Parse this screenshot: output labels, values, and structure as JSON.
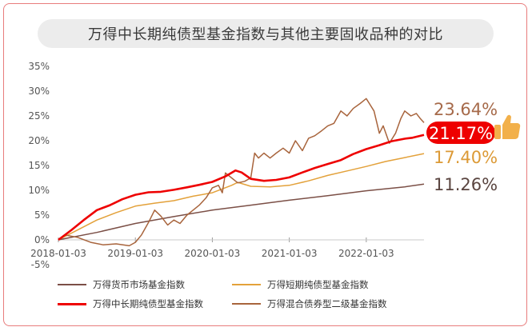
{
  "colors": {
    "frame": "#e87c7c",
    "money_market": "#7b4f46",
    "short_bond": "#e3a13a",
    "mid_long_bond": "#ee0000",
    "mixed_bond_2": "#a8643c",
    "label_brown": "#a66a4a",
    "label_gold": "#dc9a36",
    "label_dark": "#5a4540",
    "thumb": "#f2b04a"
  },
  "chart_data": {
    "type": "line",
    "title": "万得中长期纯债型基金指数与其他主要固收品种的对比",
    "xlabel": "",
    "ylabel": "",
    "x_tick_labels": [
      "2018-01-03",
      "2019-01-03",
      "2020-01-03",
      "2021-01-03",
      "2022-01-03"
    ],
    "x_tick_years": [
      2018.0,
      2019.0,
      2020.0,
      2021.0,
      2022.0
    ],
    "xlim": [
      2018.0,
      2022.75
    ],
    "y_tick_labels": [
      "35%",
      "30%",
      "25%",
      "20%",
      "15%",
      "10%",
      "5%",
      "0%",
      "-5%"
    ],
    "ylim": [
      -5,
      35
    ],
    "grid": false,
    "legend_position": "bottom",
    "series": [
      {
        "name": "万得货币市场基金指数",
        "color_key": "money_market",
        "points": [
          [
            2018.0,
            0
          ],
          [
            2018.5,
            1.5
          ],
          [
            2019.0,
            3.3
          ],
          [
            2019.5,
            4.7
          ],
          [
            2020.0,
            6.0
          ],
          [
            2020.5,
            7.0
          ],
          [
            2021.0,
            8.0
          ],
          [
            2021.5,
            8.9
          ],
          [
            2022.0,
            9.9
          ],
          [
            2022.5,
            10.7
          ],
          [
            2022.75,
            11.26
          ]
        ],
        "end_label": "11.26%"
      },
      {
        "name": "万得短期纯债型基金指数",
        "color_key": "short_bond",
        "points": [
          [
            2018.0,
            0
          ],
          [
            2018.25,
            2
          ],
          [
            2018.5,
            4
          ],
          [
            2018.75,
            5.5
          ],
          [
            2019.0,
            6.8
          ],
          [
            2019.25,
            7.4
          ],
          [
            2019.5,
            7.9
          ],
          [
            2019.75,
            8.8
          ],
          [
            2020.0,
            9.5
          ],
          [
            2020.25,
            11
          ],
          [
            2020.33,
            11.6
          ],
          [
            2020.5,
            10.8
          ],
          [
            2020.75,
            10.7
          ],
          [
            2021.0,
            11
          ],
          [
            2021.25,
            11.9
          ],
          [
            2021.5,
            13
          ],
          [
            2021.75,
            13.9
          ],
          [
            2022.0,
            14.8
          ],
          [
            2022.25,
            15.8
          ],
          [
            2022.5,
            16.6
          ],
          [
            2022.75,
            17.4
          ]
        ],
        "end_label": "17.40%"
      },
      {
        "name": "万得中长期纯债型基金指数",
        "color_key": "mid_long_bond",
        "points": [
          [
            2018.0,
            0
          ],
          [
            2018.17,
            2
          ],
          [
            2018.33,
            4
          ],
          [
            2018.5,
            6
          ],
          [
            2018.67,
            7
          ],
          [
            2018.83,
            8.2
          ],
          [
            2019.0,
            9.1
          ],
          [
            2019.17,
            9.6
          ],
          [
            2019.33,
            9.7
          ],
          [
            2019.5,
            10.1
          ],
          [
            2019.67,
            10.6
          ],
          [
            2019.83,
            11.1
          ],
          [
            2020.0,
            11.7
          ],
          [
            2020.17,
            12.8
          ],
          [
            2020.3,
            14
          ],
          [
            2020.38,
            13.6
          ],
          [
            2020.5,
            12.3
          ],
          [
            2020.67,
            11.9
          ],
          [
            2020.83,
            12.1
          ],
          [
            2021.0,
            12.6
          ],
          [
            2021.17,
            13.6
          ],
          [
            2021.33,
            14.5
          ],
          [
            2021.5,
            15.3
          ],
          [
            2021.67,
            16.1
          ],
          [
            2021.83,
            17.3
          ],
          [
            2022.0,
            18.3
          ],
          [
            2022.17,
            19.1
          ],
          [
            2022.33,
            19.9
          ],
          [
            2022.5,
            20.4
          ],
          [
            2022.6,
            20.6
          ],
          [
            2022.75,
            21.17
          ]
        ],
        "end_label": "21.17%"
      },
      {
        "name": "万得混合债券型二级基金指数",
        "color_key": "mixed_bond_2",
        "points": [
          [
            2018.0,
            0
          ],
          [
            2018.08,
            1
          ],
          [
            2018.25,
            0.5
          ],
          [
            2018.42,
            -0.5
          ],
          [
            2018.58,
            -1
          ],
          [
            2018.75,
            -0.8
          ],
          [
            2018.92,
            -1.2
          ],
          [
            2019.0,
            -0.5
          ],
          [
            2019.08,
            1
          ],
          [
            2019.17,
            3.5
          ],
          [
            2019.25,
            6
          ],
          [
            2019.33,
            4.8
          ],
          [
            2019.42,
            3
          ],
          [
            2019.5,
            4
          ],
          [
            2019.58,
            3.3
          ],
          [
            2019.67,
            5
          ],
          [
            2019.75,
            6
          ],
          [
            2019.83,
            7
          ],
          [
            2019.92,
            8.5
          ],
          [
            2020.0,
            10.5
          ],
          [
            2020.08,
            11
          ],
          [
            2020.13,
            9.5
          ],
          [
            2020.17,
            13.5
          ],
          [
            2020.25,
            12.5
          ],
          [
            2020.33,
            11.5
          ],
          [
            2020.42,
            11.8
          ],
          [
            2020.5,
            12.5
          ],
          [
            2020.55,
            17.5
          ],
          [
            2020.6,
            16.5
          ],
          [
            2020.67,
            17.5
          ],
          [
            2020.75,
            16.5
          ],
          [
            2020.83,
            17.5
          ],
          [
            2020.92,
            18.5
          ],
          [
            2021.0,
            17.5
          ],
          [
            2021.08,
            20
          ],
          [
            2021.17,
            18
          ],
          [
            2021.25,
            20.5
          ],
          [
            2021.33,
            21
          ],
          [
            2021.42,
            22
          ],
          [
            2021.5,
            23
          ],
          [
            2021.58,
            23.5
          ],
          [
            2021.67,
            26
          ],
          [
            2021.75,
            25
          ],
          [
            2021.83,
            26.5
          ],
          [
            2021.92,
            27.5
          ],
          [
            2022.0,
            28.5
          ],
          [
            2022.04,
            27.5
          ],
          [
            2022.1,
            26
          ],
          [
            2022.17,
            21.5
          ],
          [
            2022.22,
            23
          ],
          [
            2022.3,
            19.5
          ],
          [
            2022.38,
            21.5
          ],
          [
            2022.45,
            24.5
          ],
          [
            2022.5,
            26
          ],
          [
            2022.58,
            25
          ],
          [
            2022.65,
            25.5
          ],
          [
            2022.7,
            24.5
          ],
          [
            2022.75,
            23.64
          ]
        ],
        "end_label": "23.64%"
      }
    ]
  }
}
